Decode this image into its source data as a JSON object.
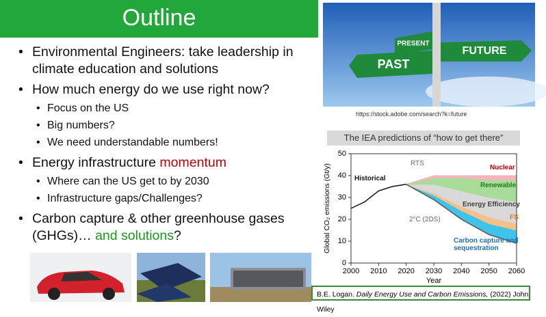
{
  "header": {
    "title": "Outline"
  },
  "bullets": [
    {
      "text": "Environmental Engineers: take leadership in climate education and solutions"
    },
    {
      "text": "How much energy do we use right now?",
      "sub": [
        "Focus on the US",
        "Big numbers?",
        "We need understandable numbers!"
      ]
    },
    {
      "text": "Energy infrastructure ",
      "emphasis": "momentum",
      "emphasis_color": "#c00000",
      "sub": [
        "Where can the US get to by 2030",
        "Infrastructure gaps/Challenges?"
      ]
    },
    {
      "text": "Carbon capture & other greenhouse gases (GHGs)… ",
      "emphasis": "and solutions",
      "emphasis_color": "#1a9a1a",
      "after": "?"
    }
  ],
  "image": {
    "signs": [
      "PRESENT",
      "FUTURE",
      "PAST"
    ],
    "caption": "https://stock.adobe.com/search?k=future"
  },
  "chart_title": "The IEA predictions of “how to get there”",
  "chart_data": {
    "type": "area",
    "stacked": true,
    "x": [
      2000,
      2005,
      2010,
      2015,
      2020,
      2030,
      2040,
      2050,
      2060
    ],
    "xlim": [
      2000,
      2060
    ],
    "xticks": [
      2000,
      2010,
      2020,
      2030,
      2040,
      2050,
      2060
    ],
    "ylim": [
      0,
      50
    ],
    "yticks": [
      0,
      10,
      20,
      30,
      40,
      50
    ],
    "xlabel": "Year",
    "ylabel": "Global CO₂ emissions (Gt/y)",
    "annotations": [
      "RTS"
    ],
    "series": [
      {
        "name": "Historical",
        "kind": "line",
        "color": "#111111",
        "values": [
          25,
          28,
          33,
          35,
          36,
          null,
          null,
          null,
          null
        ]
      },
      {
        "name": "2°C (2DS)",
        "kind": "line",
        "color": "#555555",
        "values": [
          null,
          null,
          null,
          null,
          36,
          29,
          20,
          13,
          9
        ]
      },
      {
        "name": "Carbon capture and sequestration",
        "kind": "area",
        "color": "#3fc3e8",
        "label_color": "#1f6fc0",
        "values": [
          null,
          null,
          null,
          null,
          0,
          2,
          4,
          5,
          6
        ]
      },
      {
        "name": "FS",
        "kind": "area",
        "color": "#f6c08a",
        "label_color": "#e07a1a",
        "values": [
          null,
          null,
          null,
          null,
          0,
          1,
          2,
          3,
          3
        ]
      },
      {
        "name": "Energy Efficiency",
        "kind": "area",
        "color": "#d9d9d9",
        "label_color": "#404040",
        "values": [
          null,
          null,
          null,
          null,
          0,
          4,
          7,
          9,
          10
        ]
      },
      {
        "name": "Renewable",
        "kind": "area",
        "color": "#a9dc98",
        "label_color": "#1e7d1e",
        "values": [
          null,
          null,
          null,
          null,
          0,
          3,
          6,
          8,
          10
        ]
      },
      {
        "name": "Nuclear",
        "kind": "area",
        "color": "#f5b5bc",
        "label_color": "#c00000",
        "values": [
          null,
          null,
          null,
          null,
          0,
          1,
          1,
          2,
          2
        ]
      }
    ]
  },
  "citation": {
    "author": "B.E. Logan.",
    "book": "Daily Energy Use and Carbon Emissions,",
    "rest": "(2022) John Wiley"
  }
}
